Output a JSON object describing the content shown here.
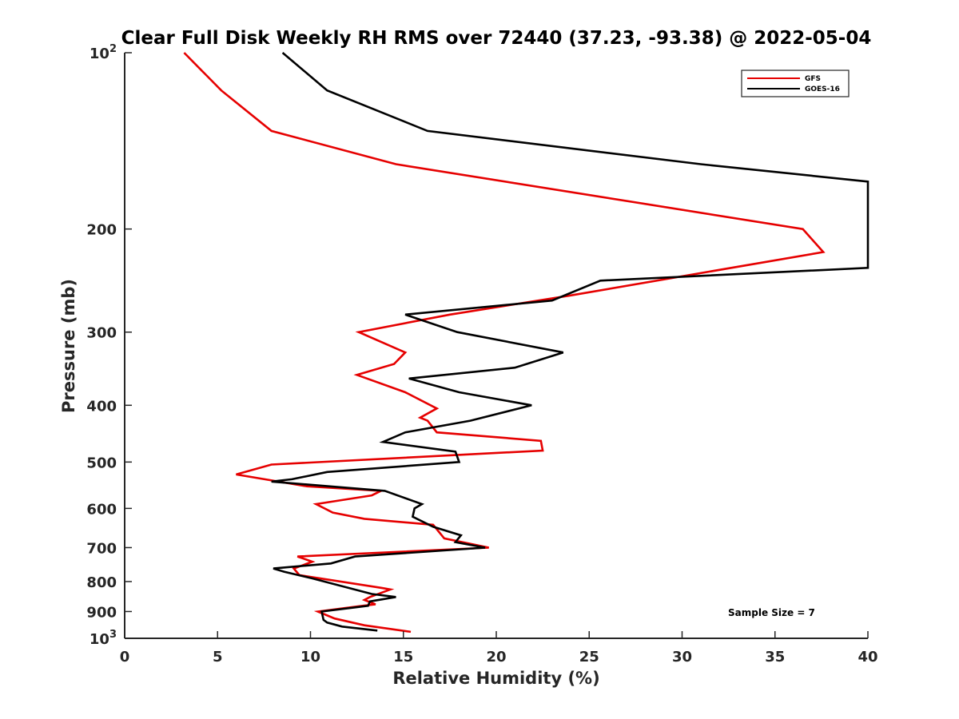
{
  "chart_data": {
    "type": "line",
    "title": "Clear Full Disk Weekly RH RMS over 72440 (37.23, -93.38) @ 2022-05-04",
    "xlabel": "Relative Humidity (%)",
    "ylabel": "Pressure (mb)",
    "xlim": [
      0,
      40
    ],
    "ylim": [
      100,
      1000
    ],
    "y_scale": "log",
    "y_reversed": true,
    "grid": false,
    "legend_position": "top-right",
    "annotation": "Sample Size = 7",
    "x_ticks": [
      "0",
      "5",
      "10",
      "15",
      "20",
      "25",
      "30",
      "35",
      "40"
    ],
    "y_ticks": [
      {
        "value": 100,
        "base": "10",
        "exp": "2"
      },
      {
        "value": 200,
        "label": "200"
      },
      {
        "value": 300,
        "label": "300"
      },
      {
        "value": 400,
        "label": "400"
      },
      {
        "value": 500,
        "label": "500"
      },
      {
        "value": 600,
        "label": "600"
      },
      {
        "value": 700,
        "label": "700"
      },
      {
        "value": 800,
        "label": "800"
      },
      {
        "value": 900,
        "label": "900"
      },
      {
        "value": 1000,
        "base": "10",
        "exp": "3"
      }
    ],
    "series": [
      {
        "name": "GFS",
        "color": "#e60000",
        "points": [
          [
            15.4,
            975
          ],
          [
            12.9,
            950
          ],
          [
            11.3,
            925
          ],
          [
            10.4,
            900
          ],
          [
            12.8,
            880
          ],
          [
            13.5,
            875
          ],
          [
            12.9,
            860
          ],
          [
            13.2,
            850
          ],
          [
            14.3,
            825
          ],
          [
            13.8,
            820
          ],
          [
            9.4,
            780
          ],
          [
            9.1,
            760
          ],
          [
            10.1,
            740
          ],
          [
            9.3,
            725
          ],
          [
            19.6,
            700
          ],
          [
            17.2,
            675
          ],
          [
            16.6,
            640
          ],
          [
            12.9,
            625
          ],
          [
            11.2,
            610
          ],
          [
            10.3,
            590
          ],
          [
            13.3,
            570
          ],
          [
            13.8,
            560
          ],
          [
            9.8,
            550
          ],
          [
            6.0,
            525
          ],
          [
            7.9,
            505
          ],
          [
            22.5,
            478
          ],
          [
            22.4,
            460
          ],
          [
            16.8,
            445
          ],
          [
            16.3,
            425
          ],
          [
            15.9,
            420
          ],
          [
            16.8,
            405
          ],
          [
            15.1,
            380
          ],
          [
            12.5,
            355
          ],
          [
            14.5,
            340
          ],
          [
            15.1,
            325
          ],
          [
            12.6,
            300
          ],
          [
            17.5,
            280
          ],
          [
            23.9,
            260
          ],
          [
            37.6,
            219
          ],
          [
            36.5,
            200
          ],
          [
            14.6,
            155
          ],
          [
            7.9,
            136
          ],
          [
            5.2,
            116
          ],
          [
            3.2,
            100
          ]
        ]
      },
      {
        "name": "GOES-16",
        "color": "#000000",
        "points": [
          [
            13.6,
            970
          ],
          [
            11.7,
            955
          ],
          [
            10.9,
            940
          ],
          [
            10.7,
            930
          ],
          [
            10.6,
            900
          ],
          [
            13.1,
            880
          ],
          [
            13.2,
            865
          ],
          [
            14.6,
            850
          ],
          [
            13.3,
            840
          ],
          [
            10.1,
            790
          ],
          [
            8.6,
            770
          ],
          [
            8.0,
            760
          ],
          [
            11.1,
            745
          ],
          [
            12.4,
            725
          ],
          [
            19.4,
            700
          ],
          [
            17.8,
            685
          ],
          [
            18.1,
            667
          ],
          [
            16.6,
            645
          ],
          [
            15.5,
            620
          ],
          [
            15.6,
            600
          ],
          [
            16.0,
            590
          ],
          [
            14.0,
            560
          ],
          [
            7.9,
            540
          ],
          [
            9.0,
            535
          ],
          [
            10.9,
            520
          ],
          [
            18.0,
            500
          ],
          [
            17.8,
            480
          ],
          [
            13.9,
            462
          ],
          [
            15.1,
            445
          ],
          [
            18.6,
            425
          ],
          [
            21.9,
            400
          ],
          [
            18.0,
            380
          ],
          [
            15.3,
            360
          ],
          [
            21.0,
            345
          ],
          [
            23.6,
            325
          ],
          [
            17.9,
            300
          ],
          [
            15.1,
            280
          ],
          [
            23.0,
            265
          ],
          [
            25.6,
            245
          ],
          [
            40.0,
            233
          ],
          [
            40.0,
            166
          ],
          [
            31.0,
            155
          ],
          [
            16.3,
            136
          ],
          [
            10.9,
            116
          ],
          [
            8.5,
            100
          ]
        ]
      }
    ]
  }
}
